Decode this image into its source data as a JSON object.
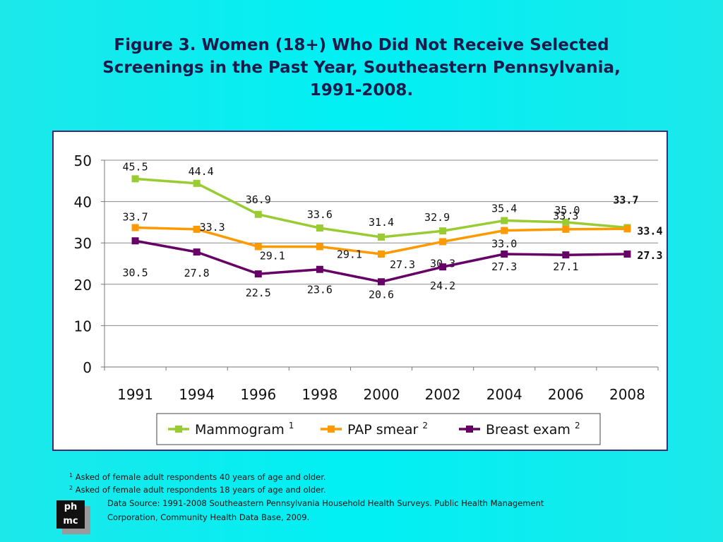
{
  "title": "Figure 3. Women (18+) Who Did Not Receive Selected Screenings in the Past Year, Southeastern Pennsylvania, 1991-2008.",
  "chart_data": {
    "type": "line",
    "categories": [
      "1991",
      "1994",
      "1996",
      "1998",
      "2000",
      "2002",
      "2004",
      "2006",
      "2008"
    ],
    "ylim": [
      0,
      50
    ],
    "yticks": [
      "0",
      "10",
      "20",
      "30",
      "40",
      "50"
    ],
    "grid": true,
    "legend_position": "bottom",
    "series": [
      {
        "name": "Mammogram",
        "legend_sup": "1",
        "color": "#99cc33",
        "values": [
          45.5,
          44.4,
          36.9,
          33.6,
          31.4,
          32.9,
          35.4,
          35.0,
          33.7
        ],
        "labels": [
          "45.5",
          "44.4",
          "36.9",
          "33.6",
          "31.4",
          "32.9",
          "35.4",
          "35.0",
          "33.7"
        ]
      },
      {
        "name": "PAP smear",
        "legend_sup": "2",
        "color": "#ff9900",
        "values": [
          33.7,
          33.3,
          29.1,
          29.1,
          27.3,
          30.3,
          33.0,
          33.3,
          33.4
        ],
        "labels": [
          "33.7",
          "33.3",
          "29.1",
          "29.1",
          "27.3",
          "30.3",
          "33.0",
          "33.3",
          "33.4"
        ]
      },
      {
        "name": "Breast exam",
        "legend_sup": "2",
        "color": "#660066",
        "values": [
          30.5,
          27.8,
          22.5,
          23.6,
          20.6,
          24.2,
          27.3,
          27.1,
          27.3
        ],
        "labels": [
          "30.5",
          "27.8",
          "22.5",
          "23.6",
          "20.6",
          "24.2",
          "27.3",
          "27.1",
          "27.3"
        ]
      }
    ]
  },
  "footnotes": [
    {
      "sup": "1",
      "text": "Asked of female adult respondents 40 years of age and older."
    },
    {
      "sup": "2",
      "text": "Asked of female adult respondents 18 years of age and older."
    }
  ],
  "source": {
    "line1": "Data Source: 1991-2008 Southeastern  Pennsylvania Household Health Surveys. Public Health Management",
    "line2": "Corporation, Community Health Data Base, 2009."
  },
  "logo": {
    "line1": "ph",
    "line2": "mc"
  }
}
